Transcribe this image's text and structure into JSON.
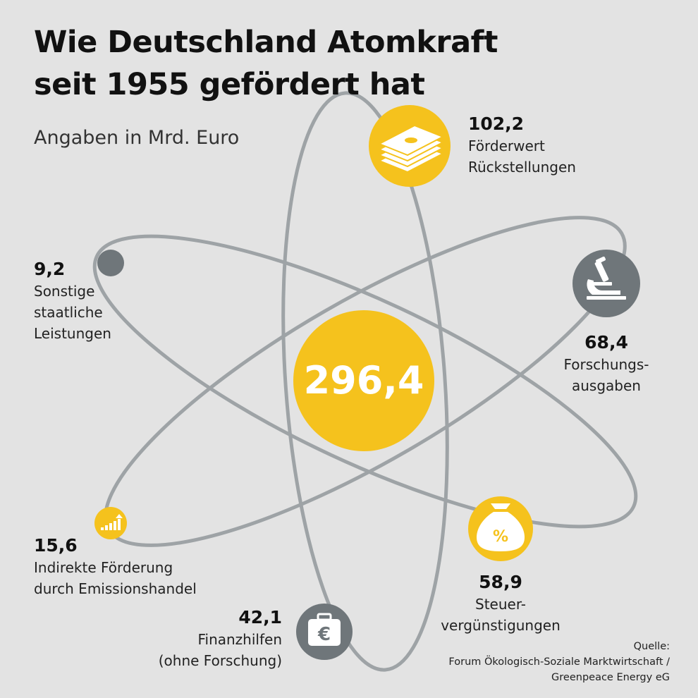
{
  "title": "Wie Deutschland Atomkraft seit 1955 gefördert hat",
  "subtitle": "Angaben in Mrd. Euro",
  "colors": {
    "background": "#e3e3e3",
    "accent_yellow": "#f5c21d",
    "dark_gray": "#6f767a",
    "orbit_gray": "#9ea3a6"
  },
  "chart_data": {
    "type": "diagram",
    "title": "Wie Deutschland Atomkraft seit 1955 gefördert hat",
    "unit": "Mrd. Euro",
    "total": {
      "value": 296.4,
      "label": "296,4"
    },
    "items": [
      {
        "value": 102.2,
        "label": "102,2",
        "name": "Förderwert Rückstellungen",
        "icon": "money-stack-icon"
      },
      {
        "value": 68.4,
        "label": "68,4",
        "name": "Forschungs-ausgaben",
        "icon": "microscope-icon"
      },
      {
        "value": 58.9,
        "label": "58,9",
        "name": "Steuer-vergünstigungen",
        "icon": "percent-money-bag-icon"
      },
      {
        "value": 42.1,
        "label": "42,1",
        "name": "Finanzhilfen (ohne Forschung)",
        "icon": "euro-briefcase-icon"
      },
      {
        "value": 15.6,
        "label": "15,6",
        "name": "Indirekte Förderung durch Emissionshandel",
        "icon": "rising-bars-icon"
      },
      {
        "value": 9.2,
        "label": "9,2",
        "name": "Sonstige staatliche Leistungen",
        "icon": "dot-icon"
      }
    ]
  },
  "labels": {
    "rueckstellungen": {
      "value": "102,2",
      "line1": "Förderwert",
      "line2": "Rückstellungen"
    },
    "forschung": {
      "value": "68,4",
      "line1": "Forschungs-",
      "line2": "ausgaben"
    },
    "steuer": {
      "value": "58,9",
      "line1": "Steuer-",
      "line2": "vergünstigungen"
    },
    "finanzhilfen": {
      "value": "42,1",
      "line1": "Finanzhilfen",
      "line2": "(ohne Forschung)"
    },
    "emission": {
      "value": "15,6",
      "line1": "Indirekte Förderung",
      "line2": "durch Emissionshandel"
    },
    "sonstige": {
      "value": "9,2",
      "line1": "Sonstige",
      "line2": "staatliche",
      "line3": "Leistungen"
    }
  },
  "center_label": "296,4",
  "source": {
    "line1": "Quelle:",
    "line2": "Forum Ökologisch-Soziale Marktwirtschaft /",
    "line3": "Greenpeace Energy eG"
  }
}
